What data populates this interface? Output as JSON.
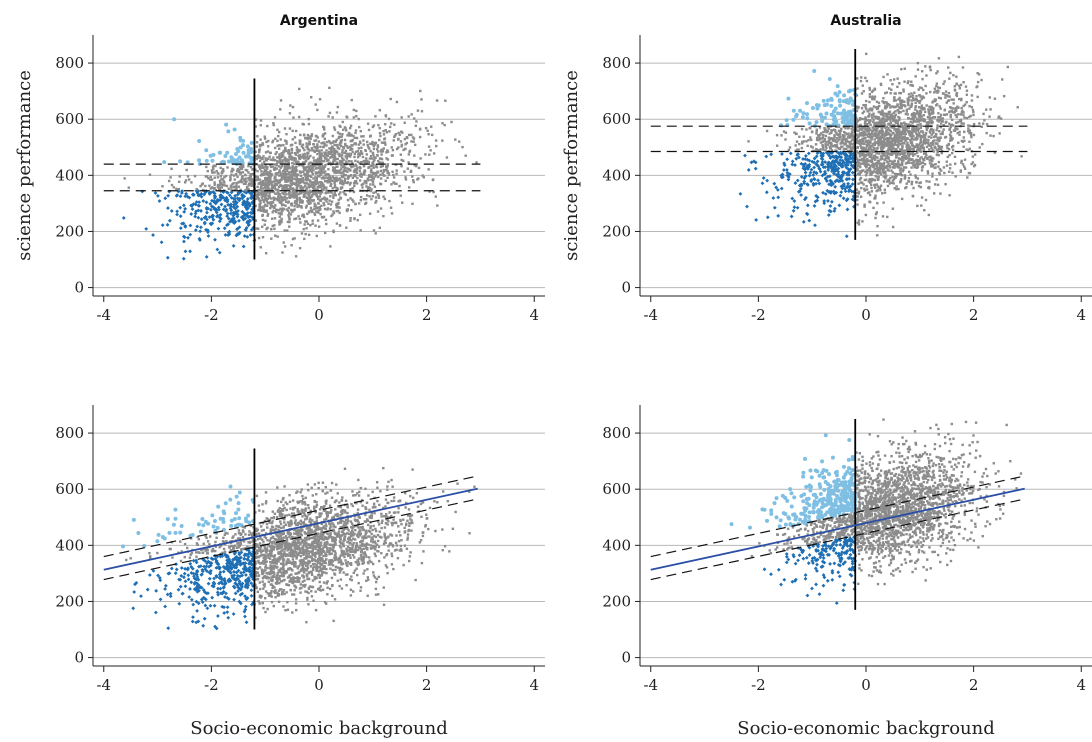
{
  "colors": {
    "grey_points": "#8c8c8c",
    "light_blue_points": "#7fbfe3",
    "dark_blue_points": "#1f6fb4",
    "regression_line": "#2b4fa6",
    "gridline": "#b8b8b8",
    "axis": "#222222"
  },
  "chart_data": [
    {
      "type": "scatter",
      "title": "Argentina",
      "xlabel": "",
      "ylabel": "science performance",
      "xlim": [
        -4.2,
        4.2
      ],
      "ylim": [
        -30,
        900
      ],
      "xticks": [
        -4,
        -2,
        0,
        2,
        4
      ],
      "yticks": [
        0,
        200,
        400,
        600,
        800
      ],
      "grid": "horizontal",
      "vertical_threshold_x": -1.2,
      "vertical_threshold_yrange": [
        100,
        745
      ],
      "reference_lines": [
        {
          "style": "dashed",
          "x": [
            -4,
            3
          ],
          "y": [
            440,
            440
          ]
        },
        {
          "style": "dashed",
          "x": [
            -4,
            3
          ],
          "y": [
            345,
            345
          ]
        }
      ],
      "cloud": {
        "x_mean": -0.4,
        "x_sd": 1.05,
        "y_mean": 390,
        "y_slope": 40,
        "y_sd": 88,
        "x_min": -3.9,
        "x_max": 2.95,
        "y_min": 100,
        "y_max": 750
      },
      "classification": "horizontal"
    },
    {
      "type": "scatter",
      "title": "Australia",
      "xlabel": "",
      "ylabel": "science performance",
      "xlim": [
        -4.2,
        4.2
      ],
      "ylim": [
        -30,
        900
      ],
      "xticks": [
        -4,
        -2,
        0,
        2,
        4
      ],
      "yticks": [
        0,
        200,
        400,
        600,
        800
      ],
      "grid": "horizontal",
      "vertical_threshold_x": -0.2,
      "vertical_threshold_yrange": [
        170,
        850
      ],
      "reference_lines": [
        {
          "style": "dashed",
          "x": [
            -4,
            3
          ],
          "y": [
            575,
            575
          ]
        },
        {
          "style": "dashed",
          "x": [
            -4,
            3
          ],
          "y": [
            485,
            485
          ]
        }
      ],
      "cloud": {
        "x_mean": 0.3,
        "x_sd": 0.85,
        "y_mean": 520,
        "y_slope": 42,
        "y_sd": 95,
        "x_min": -3.9,
        "x_max": 2.9,
        "y_min": 180,
        "y_max": 850
      },
      "classification": "horizontal"
    },
    {
      "type": "scatter",
      "title": "",
      "xlabel": "Socio-economic background",
      "ylabel": "",
      "xlim": [
        -4.2,
        4.2
      ],
      "ylim": [
        -30,
        900
      ],
      "xticks": [
        -4,
        -2,
        0,
        2,
        4
      ],
      "yticks": [
        0,
        200,
        400,
        600,
        800
      ],
      "grid": "horizontal",
      "vertical_threshold_x": -1.2,
      "vertical_threshold_yrange": [
        100,
        745
      ],
      "regression_line": {
        "x": [
          -4,
          2.95
        ],
        "y": [
          313,
          602
        ]
      },
      "reference_lines": [
        {
          "style": "dashed",
          "x": [
            -4,
            2.95
          ],
          "y": [
            360,
            647
          ]
        },
        {
          "style": "dashed",
          "x": [
            -4,
            2.95
          ],
          "y": [
            278,
            565
          ]
        }
      ],
      "cloud": {
        "x_mean": -0.4,
        "x_sd": 1.05,
        "y_mean": 390,
        "y_slope": 40,
        "y_sd": 88,
        "x_min": -3.9,
        "x_max": 2.95,
        "y_min": 100,
        "y_max": 750
      },
      "classification": "regression"
    },
    {
      "type": "scatter",
      "title": "",
      "xlabel": "Socio-economic background",
      "ylabel": "",
      "xlim": [
        -4.2,
        4.2
      ],
      "ylim": [
        -30,
        900
      ],
      "xticks": [
        -4,
        -2,
        0,
        2,
        4
      ],
      "yticks": [
        0,
        200,
        400,
        600,
        800
      ],
      "grid": "horizontal",
      "vertical_threshold_x": -0.2,
      "vertical_threshold_yrange": [
        170,
        850
      ],
      "regression_line": {
        "x": [
          -4,
          2.95
        ],
        "y": [
          313,
          602
        ]
      },
      "reference_lines": [
        {
          "style": "dashed",
          "x": [
            -4,
            2.95
          ],
          "y": [
            360,
            647
          ]
        },
        {
          "style": "dashed",
          "x": [
            -4,
            2.95
          ],
          "y": [
            278,
            565
          ]
        }
      ],
      "cloud": {
        "x_mean": 0.3,
        "x_sd": 0.85,
        "y_mean": 520,
        "y_slope": 42,
        "y_sd": 95,
        "x_min": -3.9,
        "x_max": 2.9,
        "y_min": 180,
        "y_max": 850
      },
      "classification": "regression"
    }
  ]
}
